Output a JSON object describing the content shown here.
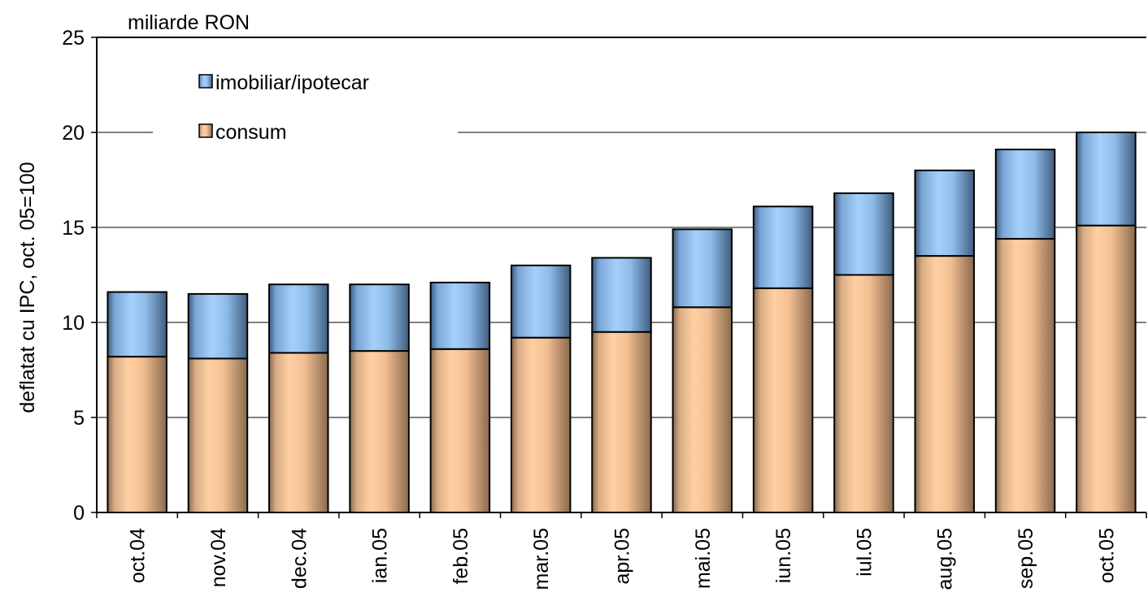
{
  "chart_data": {
    "type": "bar",
    "stacked": true,
    "unit_label": "miliarde RON",
    "ylabel": "deflatat cu IPC, oct. 05=100",
    "xlabel": "",
    "ylim": [
      0,
      25
    ],
    "yticks": [
      0,
      5,
      10,
      15,
      20,
      25
    ],
    "grid": true,
    "legend_position": "top-left",
    "categories": [
      "oct.04",
      "nov.04",
      "dec.04",
      "ian.05",
      "feb.05",
      "mar.05",
      "apr.05",
      "mai.05",
      "iun.05",
      "iul.05",
      "aug.05",
      "sep.05",
      "oct.05"
    ],
    "series": [
      {
        "name": "consum",
        "color": "#ffcc99",
        "values": [
          8.2,
          8.1,
          8.4,
          8.5,
          8.6,
          9.2,
          9.5,
          10.8,
          11.8,
          12.5,
          13.5,
          14.4,
          15.1
        ]
      },
      {
        "name": "imobiliar/ipotecar",
        "color": "#99ccff",
        "values": [
          3.4,
          3.4,
          3.6,
          3.5,
          3.5,
          3.8,
          3.9,
          4.1,
          4.3,
          4.3,
          4.5,
          4.7,
          4.9
        ]
      }
    ],
    "legend": [
      {
        "label": "imobiliar/ipotecar",
        "color": "#99ccff"
      },
      {
        "label": "consum",
        "color": "#ffcc99"
      }
    ]
  }
}
